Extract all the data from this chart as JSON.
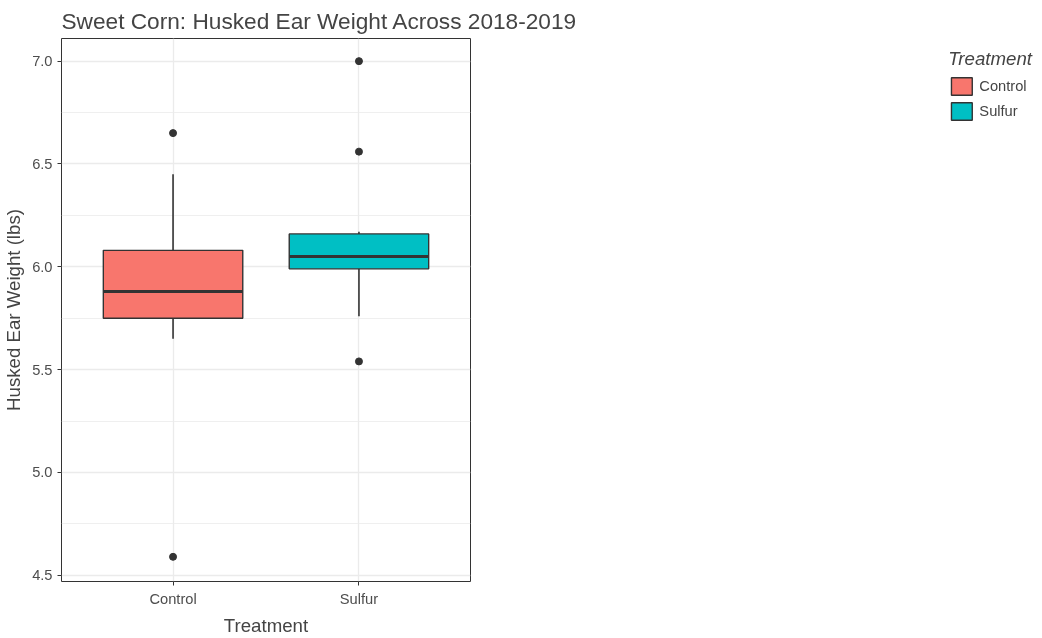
{
  "chart_data": {
    "type": "box",
    "title": "Sweet Corn: Husked Ear Weight Across 2018-2019",
    "xlabel": "Treatment",
    "ylabel": "Husked Ear Weight (lbs)",
    "legend_title": "Treatment",
    "categories": [
      "Control",
      "Sulfur"
    ],
    "series": [
      {
        "name": "Control",
        "color": "#f8766d",
        "boxes": [
          {
            "low": 5.65,
            "q1": 5.75,
            "median": 5.88,
            "q3": 6.08,
            "high": 6.45,
            "outliers": [
              6.65,
              4.59
            ]
          },
          null
        ]
      },
      {
        "name": "Sulfur",
        "color": "#00bfc4",
        "boxes": [
          null,
          {
            "low": 5.76,
            "q1": 5.99,
            "median": 6.05,
            "q3": 6.16,
            "high": 6.17,
            "outliers": [
              7.0,
              6.56,
              5.54
            ]
          }
        ]
      }
    ],
    "ylim": [
      4.47,
      7.11
    ],
    "yticks": [
      {
        "value": 4.5,
        "label": "4.5"
      },
      {
        "value": 5.0,
        "label": "5.0"
      },
      {
        "value": 5.5,
        "label": "5.5"
      },
      {
        "value": 6.0,
        "label": "6.0"
      },
      {
        "value": 6.5,
        "label": "6.5"
      },
      {
        "value": 7.0,
        "label": "7.0"
      }
    ],
    "grid": true,
    "legend": "right"
  }
}
